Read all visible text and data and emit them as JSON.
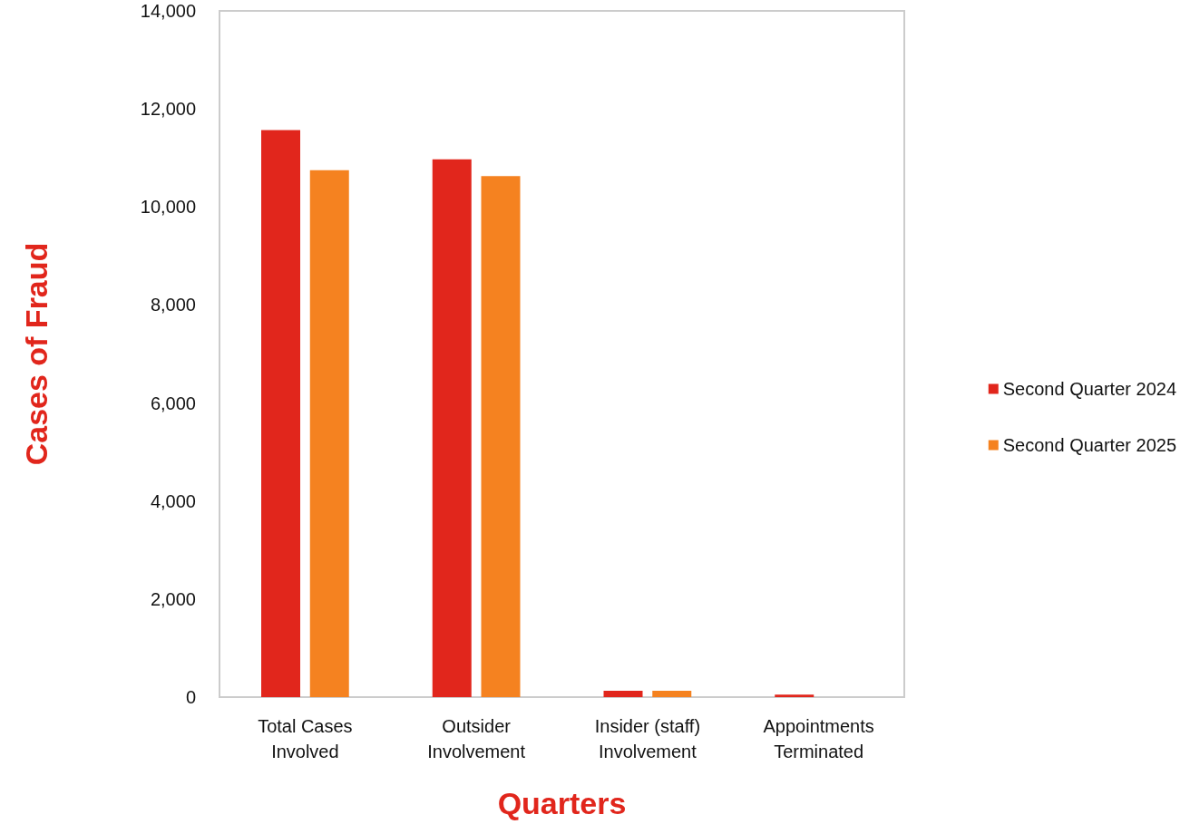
{
  "chart_data": {
    "type": "bar",
    "xlabel": "Quarters",
    "ylabel": "Cases of Fraud",
    "categories": [
      "Total Cases\nInvolved",
      "Outsider\nInvolvement",
      "Insider (staff)\nInvolvement",
      "Appointments\nTerminated"
    ],
    "series": [
      {
        "name": "Second Quarter 2024",
        "color": "#e1261c",
        "values": [
          11570,
          10970,
          130,
          50
        ]
      },
      {
        "name": "Second Quarter 2025",
        "color": "#f58220",
        "values": [
          10750,
          10630,
          130,
          0
        ]
      }
    ],
    "ylim": [
      0,
      14000
    ],
    "yticks": [
      0,
      {
        "value": 2000,
        "label": "2,000"
      },
      {
        "value": 4000,
        "label": "4,000"
      },
      {
        "value": 6000,
        "label": "6,000"
      },
      {
        "value": 8000,
        "label": "8,000"
      },
      {
        "value": 10000,
        "label": "10,000"
      },
      {
        "value": 12000,
        "label": "12,000"
      },
      {
        "value": 14000,
        "label": "14,000"
      }
    ],
    "grid": false,
    "legend": "right"
  }
}
